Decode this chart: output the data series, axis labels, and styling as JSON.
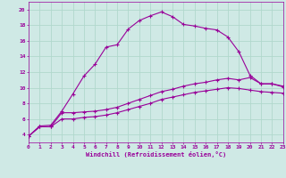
{
  "xlabel": "Windchill (Refroidissement éolien,°C)",
  "xlim": [
    0,
    23
  ],
  "ylim": [
    3,
    21
  ],
  "xticks": [
    0,
    1,
    2,
    3,
    4,
    5,
    6,
    7,
    8,
    9,
    10,
    11,
    12,
    13,
    14,
    15,
    16,
    17,
    18,
    19,
    20,
    21,
    22,
    23
  ],
  "yticks": [
    4,
    6,
    8,
    10,
    12,
    14,
    16,
    18,
    20
  ],
  "bg_color": "#cfe9e5",
  "line_color": "#990099",
  "grid_color": "#b0d8cc",
  "line1_x": [
    0,
    1,
    2,
    3,
    4,
    5,
    6,
    7,
    8,
    9,
    10,
    11,
    12,
    13,
    14,
    15,
    16,
    17,
    18,
    19,
    20,
    21,
    22,
    23
  ],
  "line1_y": [
    3.8,
    5.1,
    5.2,
    7.0,
    9.2,
    11.5,
    13.0,
    15.2,
    15.5,
    17.5,
    18.6,
    19.2,
    19.7,
    19.1,
    18.1,
    17.9,
    17.6,
    17.4,
    16.5,
    14.6,
    11.6,
    10.5,
    10.5,
    10.1
  ],
  "line2_x": [
    0,
    1,
    2,
    3,
    4,
    5,
    6,
    7,
    8,
    9,
    10,
    11,
    12,
    13,
    14,
    15,
    16,
    17,
    18,
    19,
    20,
    21,
    22,
    23
  ],
  "line2_y": [
    3.8,
    5.0,
    5.0,
    6.8,
    6.8,
    6.9,
    7.0,
    7.2,
    7.5,
    8.0,
    8.5,
    9.0,
    9.5,
    9.8,
    10.2,
    10.5,
    10.7,
    11.0,
    11.2,
    11.0,
    11.3,
    10.5,
    10.5,
    10.2
  ],
  "line3_x": [
    0,
    1,
    2,
    3,
    4,
    5,
    6,
    7,
    8,
    9,
    10,
    11,
    12,
    13,
    14,
    15,
    16,
    17,
    18,
    19,
    20,
    21,
    22,
    23
  ],
  "line3_y": [
    3.8,
    5.0,
    5.0,
    6.0,
    6.0,
    6.2,
    6.3,
    6.5,
    6.8,
    7.2,
    7.6,
    8.0,
    8.5,
    8.8,
    9.1,
    9.4,
    9.6,
    9.8,
    10.0,
    9.9,
    9.7,
    9.5,
    9.4,
    9.3
  ]
}
